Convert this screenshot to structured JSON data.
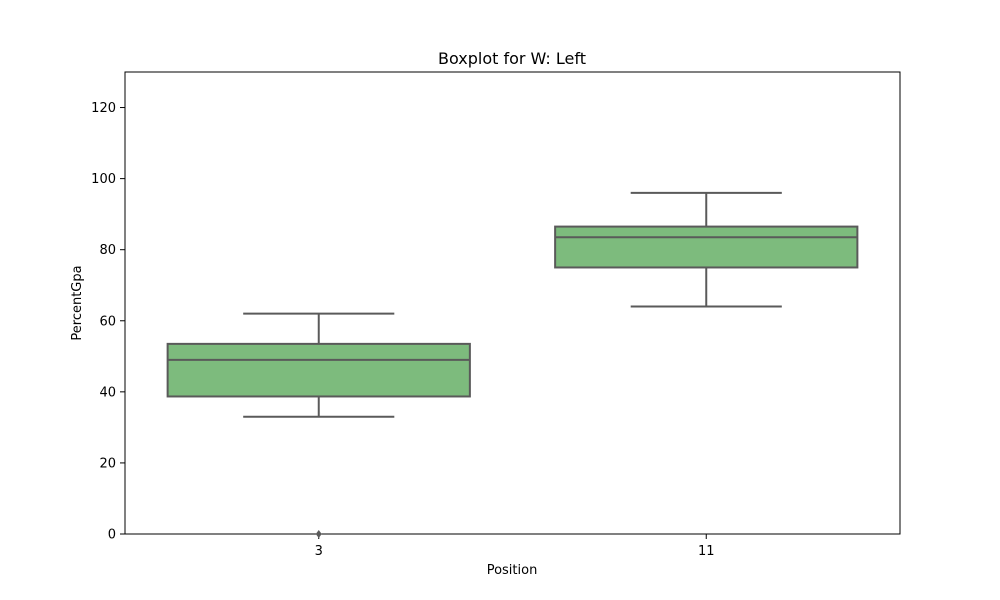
{
  "chart_data": {
    "type": "boxplot",
    "title": "Boxplot for W: Left",
    "xlabel": "Position",
    "ylabel": "PercentGpa",
    "ylim": [
      0,
      130
    ],
    "yticks": [
      0,
      20,
      40,
      60,
      80,
      100,
      120
    ],
    "categories": [
      "3",
      "11"
    ],
    "boxes": [
      {
        "category": "3",
        "whisker_low": 33,
        "q1": 38.7,
        "median": 49,
        "q3": 53.5,
        "whisker_high": 62,
        "outliers": [
          0
        ]
      },
      {
        "category": "11",
        "whisker_low": 64,
        "q1": 75,
        "median": 83.5,
        "q3": 86.5,
        "whisker_high": 96,
        "outliers": []
      }
    ],
    "grid": false,
    "box_color": "#7dbb7d",
    "line_color": "#5a5a5a"
  }
}
